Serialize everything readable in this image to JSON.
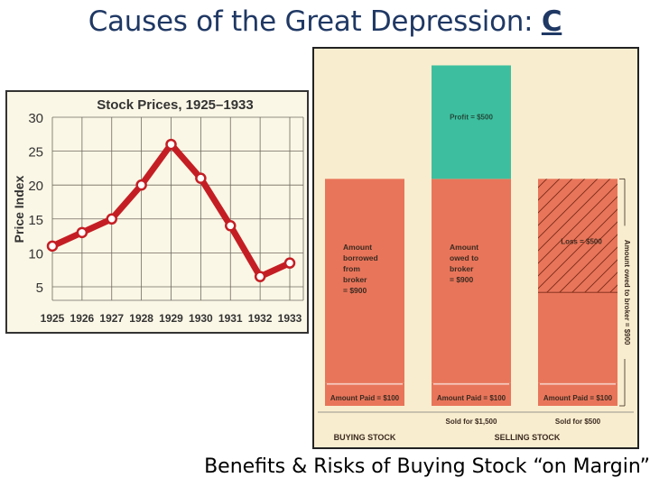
{
  "slide": {
    "title_prefix": "Causes of the Great Depression: ",
    "title_letter": "C",
    "caption": "Benefits & Risks of Buying Stock “on Margin”"
  },
  "colors": {
    "title": "#1f3864",
    "chart_background": "#fbf7e6",
    "line": "#c41e24",
    "salmon": "#e8755a",
    "teal": "#3dbf9f",
    "diagram_background": "#f9edcf"
  },
  "chart_data": [
    {
      "type": "line",
      "title": "Stock Prices, 1925–1933",
      "xlabel": "",
      "ylabel": "Price Index",
      "x": [
        "1925",
        "1926",
        "1927",
        "1928",
        "1929",
        "1930",
        "1931",
        "1932",
        "1933"
      ],
      "values": [
        11,
        13,
        15,
        20,
        26,
        21,
        14,
        6.5,
        8.5
      ],
      "ylim": [
        3,
        30
      ],
      "yticks": [
        5,
        10,
        15,
        20,
        25,
        30
      ],
      "grid": true
    },
    {
      "type": "bar",
      "subtype": "stacked",
      "columns": [
        {
          "segments": [
            {
              "label": "Amount Paid = $100",
              "value": 100
            },
            {
              "label": "Amount borrowed from broker = $900",
              "value": 900
            }
          ]
        },
        {
          "note": "Sold for $1,500",
          "segments": [
            {
              "label": "Amount Paid = $100",
              "value": 100
            },
            {
              "label": "Amount owed to broker = $900",
              "value": 900
            },
            {
              "label": "Profit = $500",
              "value": 500
            }
          ]
        },
        {
          "note": "Sold for $500",
          "segments": [
            {
              "label": "Amount Paid = $100",
              "value": 100
            },
            {
              "label": "",
              "value": 400
            },
            {
              "label": "Loss = $500",
              "value": 500
            }
          ],
          "bracket_label": "Amount owed to broker = $900"
        }
      ],
      "group_labels": [
        "BUYING STOCK",
        "SELLING STOCK"
      ]
    }
  ]
}
